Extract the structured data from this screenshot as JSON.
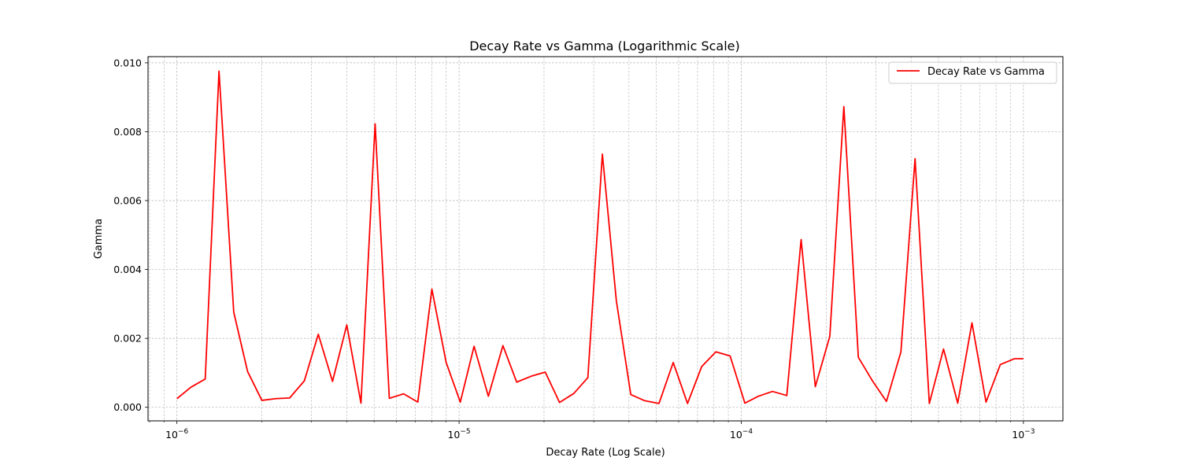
{
  "chart_data": {
    "type": "line",
    "title": "Decay Rate vs Gamma (Logarithmic Scale)",
    "xlabel": "Decay Rate (Log Scale)",
    "ylabel": "Gamma",
    "xscale": "log",
    "xlim": [
      7.9e-07,
      0.00138
    ],
    "ylim": [
      -0.000395,
      0.01018
    ],
    "x_major_ticks": [
      1e-06,
      1e-05,
      0.0001,
      0.001
    ],
    "x_major_tick_labels": [
      {
        "base": "10",
        "exp": "−6"
      },
      {
        "base": "10",
        "exp": "−5"
      },
      {
        "base": "10",
        "exp": "−4"
      },
      {
        "base": "10",
        "exp": "−3"
      }
    ],
    "y_ticks": [
      0.0,
      0.002,
      0.004,
      0.006,
      0.008,
      0.01
    ],
    "y_tick_labels": [
      "0.000",
      "0.002",
      "0.004",
      "0.006",
      "0.008",
      "0.010"
    ],
    "grid": true,
    "legend_placement": "top-right",
    "colors": {
      "series": "#ff0000",
      "grid": "#b0b0b0",
      "axis": "#000000"
    },
    "series": [
      {
        "name": "Decay Rate vs Gamma",
        "x": [
          1e-06,
          1.12e-06,
          1.26e-06,
          1.41e-06,
          1.59e-06,
          1.78e-06,
          2e-06,
          2.24e-06,
          2.51e-06,
          2.83e-06,
          3.17e-06,
          3.56e-06,
          4e-06,
          4.49e-06,
          5.04e-06,
          5.66e-06,
          6.36e-06,
          7.14e-06,
          8.01e-06,
          9e-06,
          1.01e-05,
          1.13e-05,
          1.27e-05,
          1.43e-05,
          1.6e-05,
          1.8e-05,
          2.02e-05,
          2.27e-05,
          2.55e-05,
          2.86e-05,
          3.22e-05,
          3.61e-05,
          4.06e-05,
          4.55e-05,
          5.11e-05,
          5.74e-05,
          6.45e-05,
          7.24e-05,
          8.13e-05,
          9.13e-05,
          0.000103,
          0.000115,
          0.000129,
          0.000145,
          0.000163,
          0.000183,
          0.000206,
          0.000231,
          0.00026,
          0.000292,
          0.000327,
          0.000368,
          0.000413,
          0.000464,
          0.000521,
          0.000585,
          0.000657,
          0.000737,
          0.000828,
          0.00093,
          0.001
        ],
        "y": [
          0.00025,
          0.00058,
          0.00082,
          0.00976,
          0.00276,
          0.00104,
          0.0002,
          0.00025,
          0.00027,
          0.00077,
          0.00212,
          0.00075,
          0.00239,
          0.00012,
          0.00823,
          0.00026,
          0.00039,
          0.00015,
          0.00343,
          0.0013,
          0.00015,
          0.00177,
          0.00032,
          0.00179,
          0.00073,
          0.0009,
          0.00102,
          0.00014,
          0.0004,
          0.00086,
          0.00735,
          0.00308,
          0.00037,
          0.00019,
          0.00011,
          0.0013,
          0.00011,
          0.00118,
          0.00161,
          0.00149,
          0.00012,
          0.00032,
          0.00046,
          0.00034,
          0.00487,
          0.0006,
          0.00206,
          0.00873,
          0.00145,
          0.00076,
          0.00017,
          0.00161,
          0.00722,
          0.00011,
          0.00169,
          0.00012,
          0.00245,
          0.00015,
          0.00124,
          0.00141,
          0.00141
        ]
      }
    ]
  }
}
